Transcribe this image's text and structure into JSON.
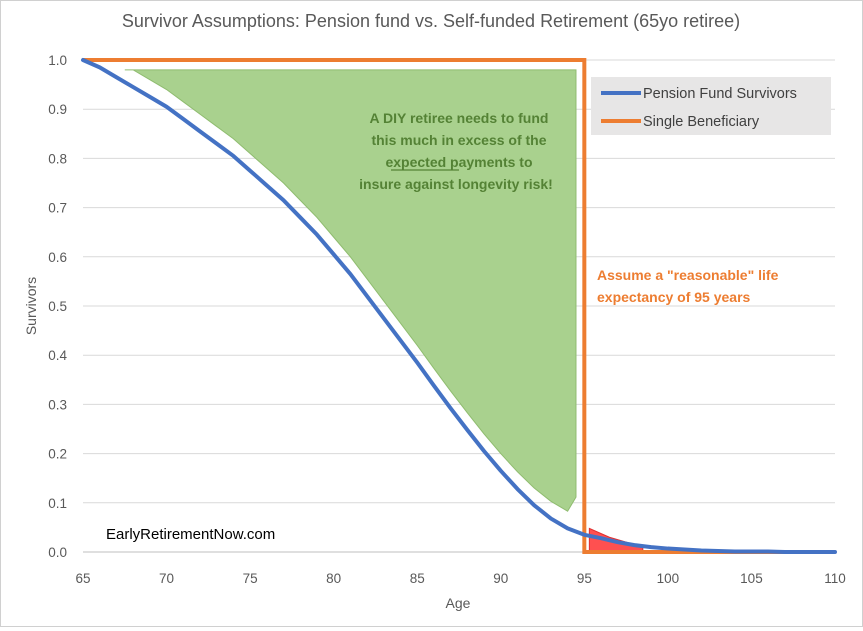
{
  "chart_data": {
    "type": "line",
    "title": "Survivor Assumptions: Pension fund vs. Self-funded Retirement (65yo retiree)",
    "xlabel": "Age",
    "ylabel": "Survivors",
    "xlim": [
      65,
      110
    ],
    "ylim": [
      0,
      1
    ],
    "x_ticks": [
      "65",
      "70",
      "75",
      "80",
      "85",
      "90",
      "95",
      "100",
      "105",
      "110"
    ],
    "y_ticks": [
      "0.0",
      "0.1",
      "0.2",
      "0.3",
      "0.4",
      "0.5",
      "0.6",
      "0.7",
      "0.8",
      "0.9",
      "1.0"
    ],
    "grid": "horizontal",
    "legend_position": "top-right",
    "series": [
      {
        "name": "Pension Fund Survivors",
        "color": "#4472c4",
        "x": [
          65,
          66,
          67,
          68,
          69,
          70,
          71,
          72,
          73,
          74,
          75,
          76,
          77,
          78,
          79,
          80,
          81,
          82,
          83,
          84,
          85,
          86,
          87,
          88,
          89,
          90,
          91,
          92,
          93,
          94,
          95,
          96,
          97,
          98,
          99,
          100,
          101,
          102,
          103,
          104,
          105,
          106,
          107,
          108,
          109,
          110
        ],
        "values": [
          1.0,
          0.985,
          0.965,
          0.945,
          0.925,
          0.905,
          0.88,
          0.855,
          0.83,
          0.805,
          0.775,
          0.745,
          0.715,
          0.68,
          0.645,
          0.605,
          0.565,
          0.52,
          0.475,
          0.43,
          0.385,
          0.338,
          0.292,
          0.248,
          0.205,
          0.165,
          0.128,
          0.095,
          0.068,
          0.048,
          0.035,
          0.028,
          0.02,
          0.014,
          0.01,
          0.007,
          0.005,
          0.003,
          0.002,
          0.001,
          0.001,
          0.001,
          0.0,
          0.0,
          0.0,
          0.0
        ]
      },
      {
        "name": "Single Beneficiary",
        "color": "#ed7d31",
        "x": [
          65,
          95,
          95,
          110
        ],
        "values": [
          1.0,
          1.0,
          0.0,
          0.0
        ]
      }
    ],
    "annotations": {
      "green_text": [
        "A DIY retiree needs to fund",
        "this much in excess of the",
        "expected payments to",
        "insure against longevity risk!"
      ],
      "orange_text": [
        "Assume a \"reasonable\" life",
        "expectancy of 95 years"
      ],
      "watermark": "EarlyRetirementNow.com"
    },
    "colors": {
      "green_fill": "#a9d18e",
      "red_fill": "#ff5050",
      "legend_bg": "#e7e6e6",
      "grid": "#d9d9d9"
    }
  }
}
